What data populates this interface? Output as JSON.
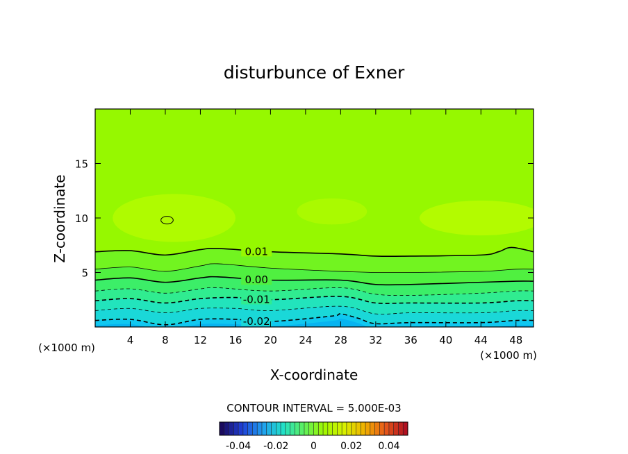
{
  "chart_data": {
    "type": "heatmap",
    "subtype": "filled-contour",
    "title": "disturbunce of Exner",
    "xlabel": "X-coordinate",
    "ylabel": "Z-coordinate",
    "x_unit": "(×1000 m)",
    "x_unit_right": "(×1000 m)",
    "xlim": [
      0,
      50
    ],
    "ylim": [
      0,
      20
    ],
    "x_ticks": [
      4,
      8,
      12,
      16,
      20,
      24,
      28,
      32,
      36,
      40,
      44,
      48
    ],
    "y_ticks": [
      5,
      10,
      15
    ],
    "contour_interval_text": "CONTOUR INTERVAL = 5.000E-03",
    "contour_interval": 0.005,
    "colorbar": {
      "range": [
        -0.05,
        0.05
      ],
      "ticks": [
        "-0.04",
        "-0.02",
        "0",
        "0.02",
        "0.04"
      ],
      "colors": [
        "#1a0a5e",
        "#1f3fd8",
        "#1f9ff0",
        "#22e0c8",
        "#5cf060",
        "#a0f800",
        "#d8f000",
        "#f0b000",
        "#e85a1a",
        "#b01020"
      ]
    },
    "contours": [
      {
        "level": 0.01,
        "label": "0.01",
        "style": "solid",
        "x": [
          0,
          4,
          8,
          12,
          14,
          20,
          28,
          32,
          36,
          44,
          46,
          47.5,
          50
        ],
        "z": [
          6.9,
          7.0,
          6.6,
          7.1,
          7.2,
          6.9,
          6.7,
          6.5,
          6.5,
          6.6,
          6.9,
          7.3,
          6.9
        ]
      },
      {
        "level": 0.005,
        "label": "",
        "style": "thin",
        "x": [
          0,
          4,
          8,
          12,
          14,
          20,
          28,
          32,
          36,
          44,
          48,
          50
        ],
        "z": [
          5.3,
          5.5,
          5.1,
          5.6,
          5.8,
          5.4,
          5.1,
          5.0,
          5.0,
          5.1,
          5.3,
          5.3
        ]
      },
      {
        "level": 0.0,
        "label": "0.00",
        "style": "solid",
        "x": [
          0,
          4,
          8,
          12,
          14,
          20,
          28,
          32,
          36,
          44,
          48,
          50
        ],
        "z": [
          4.3,
          4.5,
          4.1,
          4.5,
          4.6,
          4.3,
          4.3,
          3.9,
          3.9,
          4.1,
          4.2,
          4.2
        ]
      },
      {
        "level": -0.005,
        "label": "",
        "style": "thin-dashed",
        "x": [
          0,
          4,
          8,
          12,
          14,
          20,
          28,
          32,
          36,
          44,
          48,
          50
        ],
        "z": [
          3.3,
          3.5,
          3.1,
          3.5,
          3.6,
          3.3,
          3.6,
          3.0,
          2.9,
          3.1,
          3.3,
          3.3
        ]
      },
      {
        "level": -0.01,
        "label": "-0.01",
        "style": "dashed",
        "x": [
          0,
          4,
          8,
          12,
          16,
          20,
          28,
          32,
          36,
          44,
          48,
          50
        ],
        "z": [
          2.4,
          2.6,
          2.2,
          2.6,
          2.7,
          2.5,
          2.8,
          2.2,
          2.2,
          2.2,
          2.4,
          2.4
        ]
      },
      {
        "level": -0.015,
        "label": "",
        "style": "thin-dashed",
        "x": [
          0,
          4,
          8,
          12,
          16,
          20,
          28,
          32,
          36,
          44,
          48,
          50
        ],
        "z": [
          1.5,
          1.7,
          1.3,
          1.7,
          1.7,
          1.5,
          1.9,
          1.2,
          1.3,
          1.3,
          1.5,
          1.5
        ]
      },
      {
        "level": -0.02,
        "label": "-0.02",
        "style": "dashed",
        "x": [
          0,
          4,
          8,
          12,
          16,
          20,
          27,
          28,
          30,
          32,
          36,
          44,
          48,
          50
        ],
        "z": [
          0.6,
          0.7,
          0.2,
          0.7,
          0.7,
          0.5,
          1.0,
          1.2,
          0.8,
          0.3,
          0.4,
          0.4,
          0.6,
          0.6
        ]
      }
    ],
    "closed_contour": {
      "cx": 8.2,
      "cz": 9.8,
      "rx": 0.7,
      "rz": 0.35
    },
    "fill_bands": [
      {
        "below_level": -0.02,
        "color": "#10c8f0"
      },
      {
        "below_level": -0.015,
        "color": "#1ad8d8"
      },
      {
        "below_level": -0.01,
        "color": "#22e4bc"
      },
      {
        "below_level": -0.005,
        "color": "#30ec90"
      },
      {
        "below_level": 0.0,
        "color": "#3cee68"
      },
      {
        "below_level": 0.005,
        "color": "#50f040"
      },
      {
        "below_level": 0.01,
        "color": "#72f420"
      },
      {
        "below_level": 99,
        "color": "#96f800"
      }
    ],
    "highlight_regions": [
      {
        "cx": 9,
        "cz": 10,
        "rx": 7,
        "rz": 2.2,
        "color": "#b4fb00"
      },
      {
        "cx": 44,
        "cz": 10,
        "rx": 7,
        "rz": 1.6,
        "color": "#b8fb00"
      },
      {
        "cx": 27,
        "cz": 10.6,
        "rx": 4,
        "rz": 1.2,
        "color": "#aefa00"
      }
    ]
  }
}
